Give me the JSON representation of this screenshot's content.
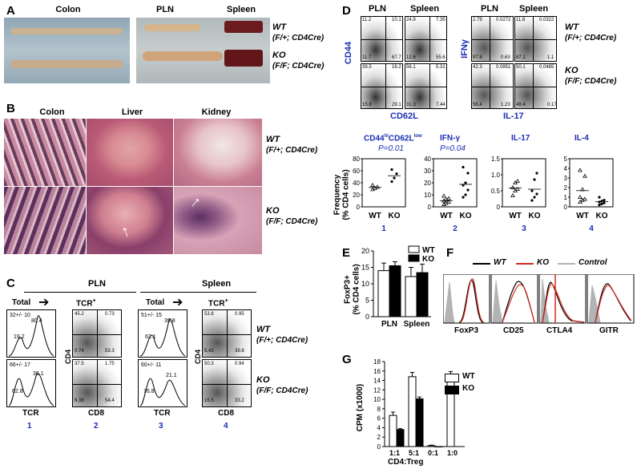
{
  "A": {
    "label": "A",
    "colon": "Colon",
    "pln": "PLN",
    "spleen": "Spleen",
    "wt": "WT",
    "wt_geno": "(F/+; CD4Cre)",
    "ko": "KO",
    "ko_geno": "(F/F; CD4Cre)"
  },
  "B": {
    "label": "B",
    "colon": "Colon",
    "liver": "Liver",
    "kidney": "Kidney",
    "wt": "WT",
    "wt_geno": "(F/+; CD4Cre)",
    "ko": "KO",
    "ko_geno": "(F/F; CD4Cre)"
  },
  "C": {
    "label": "C",
    "pln": "PLN",
    "spleen": "Spleen",
    "total": "Total",
    "tcr_plus": "TCR",
    "plus": "+",
    "arrow": "➔",
    "axis_tcr": "TCR",
    "axis_cd4": "CD4",
    "axis_cd8": "CD8",
    "nums": [
      "1",
      "2",
      "3",
      "4"
    ],
    "wt": "WT",
    "wt_geno": "(F/+; CD4Cre)",
    "ko": "KO",
    "ko_geno": "(F/F; CD4Cre)",
    "h1_wt": {
      "red": "32+/- 10",
      "hi": "80.4",
      "lo": "19.2"
    },
    "h1_ko": {
      "red": "66+/- 17",
      "hi": "36.1",
      "lo": "62.8"
    },
    "h3_wt": {
      "red": "51+/- 15",
      "hi": "39.8",
      "lo": "62.1"
    },
    "h3_ko": {
      "red": "60+/- 11",
      "hi": "21.1",
      "lo": "76.8"
    },
    "d2_wt": [
      "45.2",
      "0.73",
      "0.74",
      "53.3"
    ],
    "d2_ko": [
      "37.5",
      "1.75",
      "6.38",
      "54.4"
    ],
    "d4_wt": [
      "53.8",
      "0.95",
      "5.43",
      "39.8"
    ],
    "d4_ko": [
      "50.3",
      "0.94",
      "15.5",
      "33.2"
    ]
  },
  "D": {
    "label": "D",
    "pln": "PLN",
    "spleen": "Spleen",
    "axis_cd44": "CD44",
    "axis_cd62l": "CD62L",
    "axis_ifng": "IFNγ",
    "axis_il17": "IL-17",
    "wt": "WT",
    "wt_geno": "(F/+; CD4Cre)",
    "ko": "KO",
    "ko_geno": "(F/F; CD4Cre)",
    "q1_wt": [
      "11.2",
      "10.1",
      "24.9",
      "7.35",
      "11.7",
      "67.7",
      "12.6",
      "55.6"
    ],
    "q1_ko": [
      "39.5",
      "16.2",
      "56.1",
      "5.31",
      "15.8",
      "29.1",
      "31.3",
      "7.44"
    ],
    "q2_wt": [
      "2.79",
      "0.0272",
      "11.8",
      "0.0322",
      "97.8",
      "0.63",
      "87.1",
      "1.1"
    ],
    "q2_ko": [
      "42.3",
      "0.0851",
      "50.1",
      "0.0485",
      "56.4",
      "1.23",
      "48.4",
      "0.17"
    ],
    "ylabel1": "Frequency",
    "ylabel2": "(% CD4 cells)",
    "panels": [
      {
        "title": "CD44",
        "title_sup1": "hi",
        "title_mid": "CD62L",
        "title_sup2": "low",
        "p": "P=0.01",
        "num": "1",
        "ticks": [
          "80",
          "60",
          "40",
          "20",
          "0"
        ]
      },
      {
        "title": "IFN-γ",
        "p": "P=0.04",
        "num": "2",
        "ticks": [
          "40",
          "30",
          "20",
          "10",
          "0"
        ]
      },
      {
        "title": "IL-17",
        "p": "",
        "num": "3",
        "ticks": [
          "1.5",
          "1.0",
          "0.5",
          "0"
        ]
      },
      {
        "title": "IL-4",
        "p": "",
        "num": "4",
        "ticks": [
          "5",
          "4",
          "3",
          "2",
          "1",
          "0"
        ]
      }
    ],
    "xcats": [
      "WT",
      "KO"
    ]
  },
  "E": {
    "label": "E",
    "ylabel1": "FoxP3+",
    "ylabel2": "(% CD4 cells)",
    "ticks": [
      "20",
      "15",
      "10",
      "5",
      "0"
    ],
    "cats": [
      "PLN",
      "Spleen"
    ],
    "legend": [
      "WT",
      "KO"
    ],
    "colors": {
      "wt": "#ffffff",
      "ko": "#000000"
    }
  },
  "F": {
    "label": "F",
    "legend": [
      "WT",
      "KO",
      "Control"
    ],
    "markers": [
      "FoxP3",
      "CD25",
      "CTLA4",
      "GITR"
    ],
    "colors": {
      "wt": "#000000",
      "ko": "#d42a1f",
      "control": "#b3b3b3"
    }
  },
  "G": {
    "label": "G",
    "ylabel": "CPM (x1000)",
    "xlabel": "CD4:Treg",
    "ticks": [
      "18",
      "16",
      "14",
      "12",
      "10",
      "8",
      "6",
      "4",
      "2",
      "0"
    ],
    "cats": [
      "1:1",
      "5:1",
      "0:1",
      "1:0"
    ],
    "legend": [
      "WT",
      "KO"
    ]
  },
  "chart_data": [
    {
      "type": "scatter",
      "panel": "D1",
      "title": "CD44hiCD62Llow",
      "annotation": "P=0.01",
      "ylabel": "Frequency (% CD4 cells)",
      "ylim": [
        0,
        80
      ],
      "categories": [
        "WT",
        "KO"
      ],
      "series": [
        {
          "values": [
            [
              29,
              31,
              33,
              36
            ],
            [
              42,
              48,
              55,
              62
            ]
          ]
        }
      ]
    },
    {
      "type": "scatter",
      "panel": "D2",
      "title": "IFN-γ",
      "annotation": "P=0.04",
      "ylim": [
        0,
        40
      ],
      "categories": [
        "WT",
        "KO"
      ],
      "series": [
        {
          "values": [
            [
              2,
              3,
              4,
              5,
              6,
              7,
              9
            ],
            [
              8,
              10,
              14,
              18,
              20,
              28,
              33
            ]
          ]
        }
      ]
    },
    {
      "type": "scatter",
      "panel": "D3",
      "title": "IL-17",
      "ylim": [
        0,
        1.5
      ],
      "categories": [
        "WT",
        "KO"
      ],
      "series": [
        {
          "values": [
            [
              0.35,
              0.5,
              0.55,
              0.6,
              0.75,
              0.8
            ],
            [
              0.2,
              0.3,
              0.4,
              0.5,
              0.85,
              1.05
            ]
          ]
        }
      ]
    },
    {
      "type": "scatter",
      "panel": "D4",
      "title": "IL-4",
      "ylim": [
        0,
        5
      ],
      "categories": [
        "WT",
        "KO"
      ],
      "series": [
        {
          "values": [
            [
              0.5,
              0.7,
              0.8,
              1.0,
              1.8,
              3.2,
              3.8
            ],
            [
              0.2,
              0.3,
              0.4,
              0.5,
              0.6,
              0.7,
              1.0
            ]
          ]
        }
      ]
    },
    {
      "type": "bar",
      "panel": "E",
      "ylabel": "FoxP3+ (% CD4 cells)",
      "ylim": [
        0,
        20
      ],
      "categories": [
        "PLN",
        "Spleen"
      ],
      "series": [
        {
          "name": "WT",
          "values": [
            14,
            12.2
          ],
          "errors": [
            2.3,
            2.8
          ]
        },
        {
          "name": "KO",
          "values": [
            15.5,
            13.4
          ],
          "errors": [
            1.2,
            2.6
          ]
        }
      ]
    },
    {
      "type": "bar",
      "panel": "G",
      "ylabel": "CPM (x1000)",
      "xlabel": "CD4:Treg",
      "ylim": [
        0,
        18
      ],
      "categories": [
        "1:1",
        "5:1",
        "0:1",
        "1:0"
      ],
      "series": [
        {
          "name": "WT",
          "values": [
            6.6,
            14.8,
            0.2,
            14.8
          ],
          "errors": [
            0.7,
            0.9,
            0.1,
            1.1
          ]
        },
        {
          "name": "KO",
          "values": [
            3.6,
            10.1,
            0,
            null
          ],
          "errors": [
            0.2,
            0.4,
            0,
            null
          ]
        }
      ]
    }
  ]
}
